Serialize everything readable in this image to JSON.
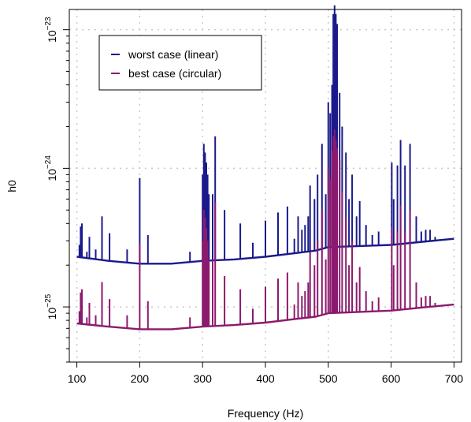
{
  "chart_data": {
    "type": "line",
    "title": "",
    "xlabel": "Frequency (Hz)",
    "ylabel": "h0",
    "xlim": [
      88,
      712
    ],
    "ylim": [
      4e-26,
      1.4e-23
    ],
    "yscale": "log",
    "grid": true,
    "legend_position": "top-left",
    "x_ticks": [
      100,
      200,
      300,
      400,
      500,
      600,
      700
    ],
    "x_tick_labels": [
      "100",
      "200",
      "300",
      "400",
      "500",
      "600",
      "700"
    ],
    "y_ticks": [
      {
        "value": 1e-25,
        "base": "10",
        "exponent": "−25"
      },
      {
        "value": 1e-24,
        "base": "10",
        "exponent": "−24"
      },
      {
        "value": 1e-23,
        "base": "10",
        "exponent": "−23"
      }
    ],
    "series": [
      {
        "name": "worst case (linear)",
        "color": "#1a1a8c",
        "baseline": [
          [
            100,
            2.3e-25
          ],
          [
            150,
            2.15e-25
          ],
          [
            200,
            2.05e-25
          ],
          [
            250,
            2.05e-25
          ],
          [
            300,
            2.15e-25
          ],
          [
            350,
            2.2e-25
          ],
          [
            400,
            2.3e-25
          ],
          [
            450,
            2.45e-25
          ],
          [
            480,
            2.55e-25
          ],
          [
            500,
            2.7e-25
          ],
          [
            550,
            2.75e-25
          ],
          [
            600,
            2.8e-25
          ],
          [
            650,
            2.95e-25
          ],
          [
            700,
            3.1e-25
          ]
        ],
        "peaks": [
          [
            104,
            2.8e-25
          ],
          [
            106,
            3.8e-25
          ],
          [
            108,
            4e-25
          ],
          [
            116,
            2.5e-25
          ],
          [
            120,
            3.2e-25
          ],
          [
            130,
            2.6e-25
          ],
          [
            140,
            4.5e-25
          ],
          [
            152,
            3.4e-25
          ],
          [
            180,
            2.6e-25
          ],
          [
            200,
            8.5e-25
          ],
          [
            213,
            3.3e-25
          ],
          [
            280,
            2.5e-25
          ],
          [
            300,
            9e-25
          ],
          [
            302,
            1.5e-24
          ],
          [
            304,
            1.3e-24
          ],
          [
            306,
            1.1e-24
          ],
          [
            308,
            9e-25
          ],
          [
            310,
            6.5e-25
          ],
          [
            316,
            6.5e-25
          ],
          [
            320,
            1.7e-24
          ],
          [
            335,
            5e-25
          ],
          [
            360,
            4e-25
          ],
          [
            380,
            2.9e-25
          ],
          [
            400,
            4.2e-25
          ],
          [
            420,
            4.8e-25
          ],
          [
            435,
            5.3e-25
          ],
          [
            446,
            3.1e-25
          ],
          [
            452,
            4.5e-25
          ],
          [
            458,
            3.6e-25
          ],
          [
            463,
            3.9e-25
          ],
          [
            468,
            4.5e-25
          ],
          [
            471,
            7.5e-25
          ],
          [
            478,
            6e-25
          ],
          [
            483,
            9e-25
          ],
          [
            490,
            1.5e-24
          ],
          [
            496,
            6.5e-25
          ],
          [
            500,
            3e-24
          ],
          [
            503,
            2.5e-24
          ],
          [
            506,
            4e-24
          ],
          [
            508,
            1.3e-23
          ],
          [
            510,
            1.5e-23
          ],
          [
            512,
            1.3e-23
          ],
          [
            514,
            1.1e-23
          ],
          [
            518,
            3.5e-24
          ],
          [
            522,
            2e-24
          ],
          [
            528,
            1.3e-24
          ],
          [
            533,
            6e-25
          ],
          [
            538,
            9e-25
          ],
          [
            545,
            4.5e-25
          ],
          [
            550,
            5.8e-25
          ],
          [
            560,
            3.9e-25
          ],
          [
            570,
            3.3e-25
          ],
          [
            580,
            3.5e-25
          ],
          [
            601,
            1.1e-24
          ],
          [
            604,
            6e-25
          ],
          [
            610,
            1.05e-24
          ],
          [
            615,
            1.6e-24
          ],
          [
            622,
            1.05e-24
          ],
          [
            630,
            1.5e-24
          ],
          [
            640,
            4.5e-25
          ],
          [
            648,
            3.5e-25
          ],
          [
            655,
            3.6e-25
          ],
          [
            662,
            3.6e-25
          ],
          [
            670,
            3.2e-25
          ]
        ]
      },
      {
        "name": "best case (circular)",
        "color": "#8b1a6e",
        "baseline": [
          [
            100,
            7.6e-26
          ],
          [
            150,
            7.2e-26
          ],
          [
            200,
            6.9e-26
          ],
          [
            250,
            6.9e-26
          ],
          [
            300,
            7.2e-26
          ],
          [
            350,
            7.4e-26
          ],
          [
            400,
            7.7e-26
          ],
          [
            450,
            8.2e-26
          ],
          [
            480,
            8.5e-26
          ],
          [
            500,
            9e-26
          ],
          [
            550,
            9.2e-26
          ],
          [
            600,
            9.4e-26
          ],
          [
            650,
            9.9e-26
          ],
          [
            700,
            1.04e-25
          ]
        ],
        "peaks": [
          [
            104,
            9.3e-26
          ],
          [
            106,
            1.27e-25
          ],
          [
            108,
            1.34e-25
          ],
          [
            116,
            8.4e-26
          ],
          [
            120,
            1.07e-25
          ],
          [
            130,
            8.7e-26
          ],
          [
            140,
            1.51e-25
          ],
          [
            152,
            1.14e-25
          ],
          [
            180,
            8.7e-26
          ],
          [
            200,
            2.85e-25
          ],
          [
            213,
            1.1e-25
          ],
          [
            280,
            8.4e-26
          ],
          [
            300,
            3e-25
          ],
          [
            302,
            5e-25
          ],
          [
            304,
            4.4e-25
          ],
          [
            306,
            3.7e-25
          ],
          [
            308,
            3e-25
          ],
          [
            310,
            2.2e-25
          ],
          [
            316,
            2.2e-25
          ],
          [
            320,
            5.7e-25
          ],
          [
            335,
            1.67e-25
          ],
          [
            360,
            1.34e-25
          ],
          [
            380,
            9.7e-26
          ],
          [
            400,
            1.4e-25
          ],
          [
            420,
            1.6e-25
          ],
          [
            435,
            1.77e-25
          ],
          [
            446,
            1.04e-25
          ],
          [
            452,
            1.5e-25
          ],
          [
            458,
            1.2e-25
          ],
          [
            463,
            1.3e-25
          ],
          [
            468,
            1.5e-25
          ],
          [
            471,
            2.5e-25
          ],
          [
            478,
            2e-25
          ],
          [
            483,
            3e-25
          ],
          [
            490,
            5e-25
          ],
          [
            496,
            2.2e-25
          ],
          [
            500,
            1e-24
          ],
          [
            503,
            8.4e-25
          ],
          [
            506,
            1.34e-24
          ],
          [
            508,
            1.7e-24
          ],
          [
            510,
            1.9e-24
          ],
          [
            512,
            1.6e-24
          ],
          [
            514,
            1.4e-24
          ],
          [
            518,
            1.17e-24
          ],
          [
            522,
            6.7e-25
          ],
          [
            528,
            4.4e-25
          ],
          [
            533,
            2e-25
          ],
          [
            538,
            3e-25
          ],
          [
            545,
            1.5e-25
          ],
          [
            550,
            1.94e-25
          ],
          [
            560,
            1.3e-25
          ],
          [
            570,
            1.1e-25
          ],
          [
            580,
            1.17e-25
          ],
          [
            601,
            3.7e-25
          ],
          [
            604,
            2e-25
          ],
          [
            610,
            3.5e-25
          ],
          [
            615,
            5.4e-25
          ],
          [
            622,
            3.5e-25
          ],
          [
            630,
            5e-25
          ],
          [
            640,
            1.5e-25
          ],
          [
            648,
            1.17e-25
          ],
          [
            655,
            1.2e-25
          ],
          [
            662,
            1.2e-25
          ],
          [
            670,
            1.07e-25
          ]
        ]
      }
    ]
  }
}
